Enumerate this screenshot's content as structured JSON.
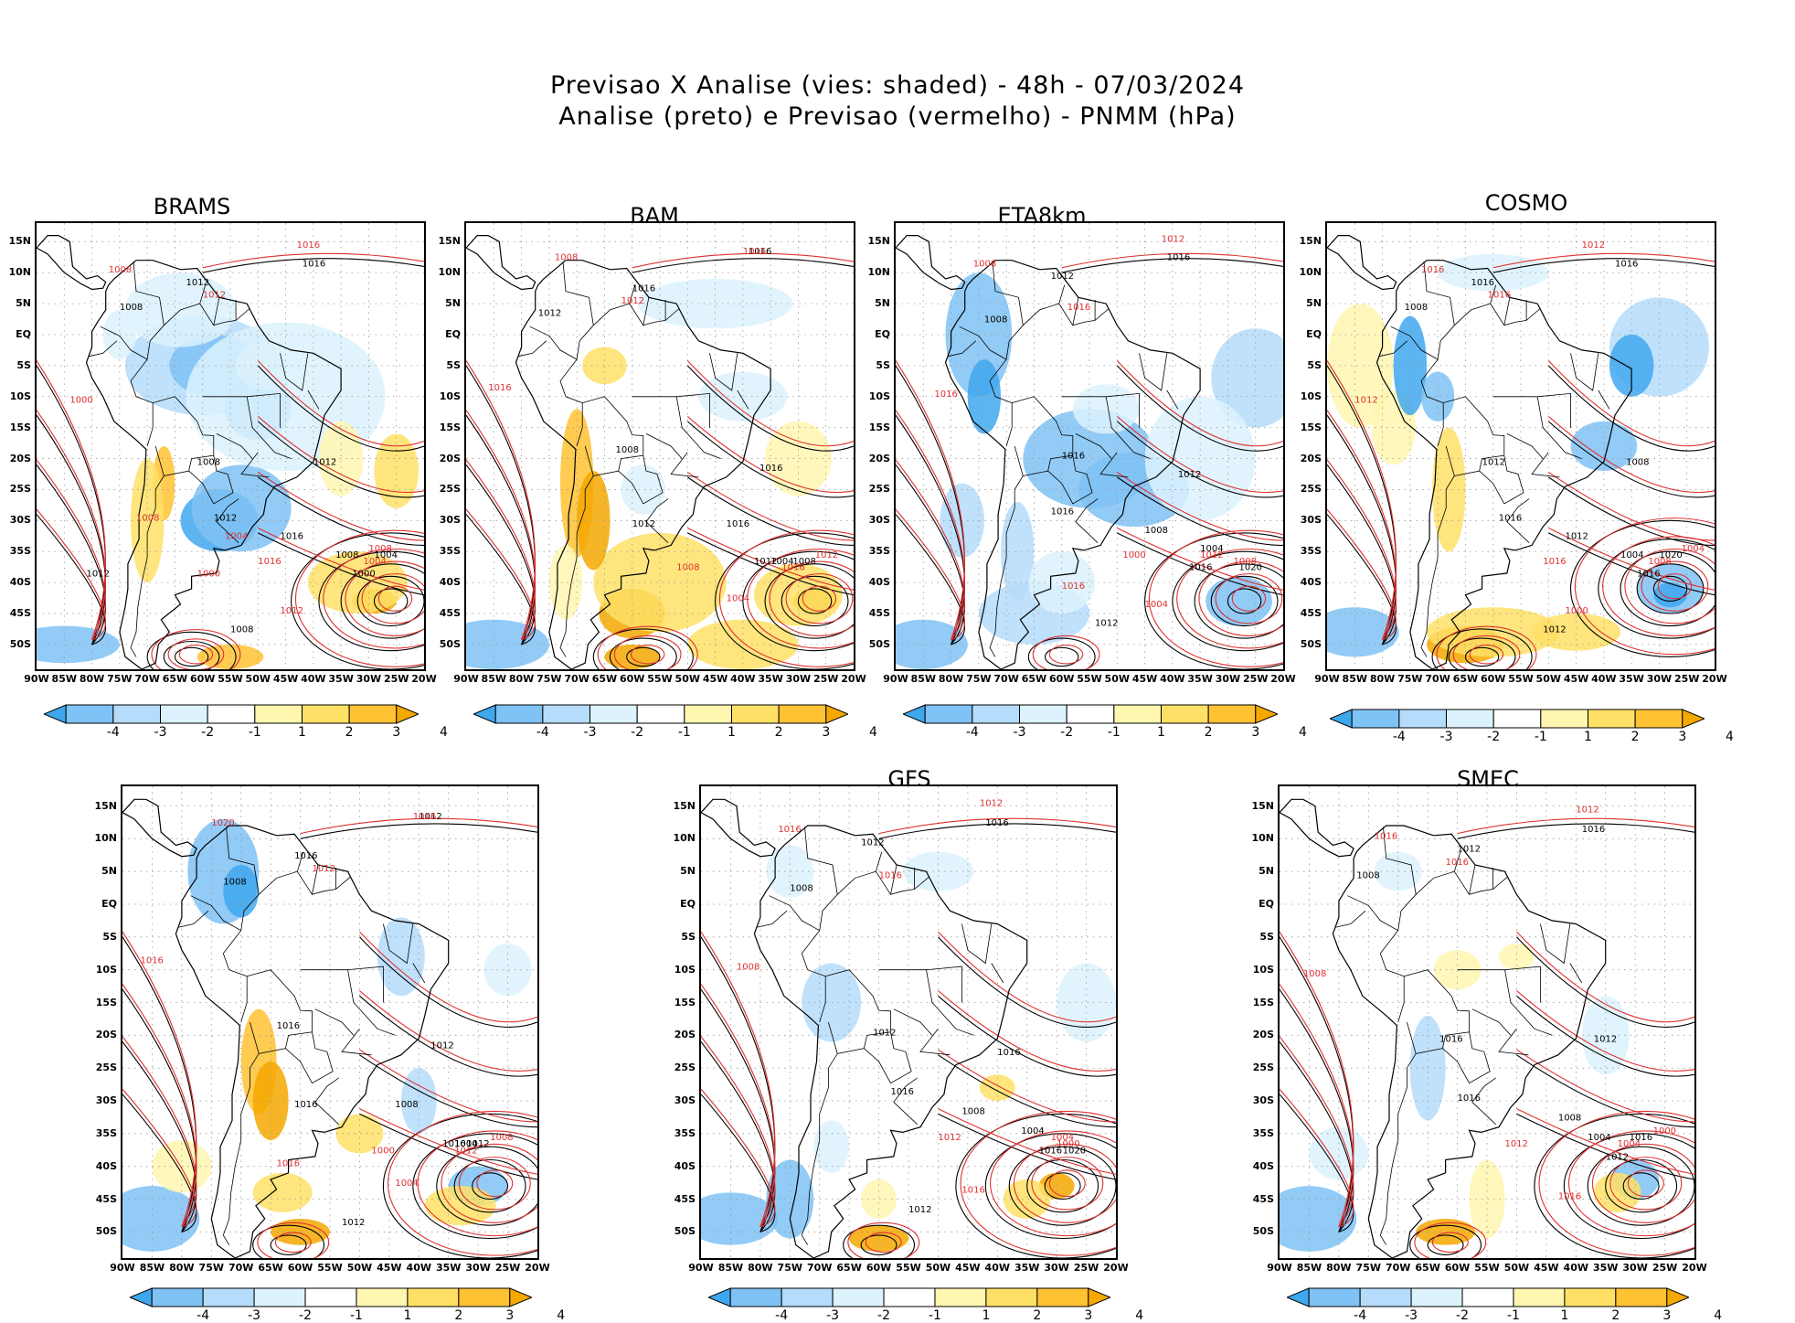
{
  "title": {
    "line1": "Previsao X Analise (vies: shaded) - 48h - 07/03/2024",
    "line2": "Analise (preto) e Previsao (vermelho) - PNMM (hPa)"
  },
  "axes": {
    "lat_labels": [
      "15N",
      "10N",
      "5N",
      "EQ",
      "5S",
      "10S",
      "15S",
      "20S",
      "25S",
      "30S",
      "35S",
      "40S",
      "45S",
      "50S"
    ],
    "lon_labels": [
      "90W",
      "85W",
      "80W",
      "75W",
      "70W",
      "65W",
      "60W",
      "55W",
      "50W",
      "45W",
      "40W",
      "35W",
      "30W",
      "25W",
      "20W"
    ]
  },
  "legend": {
    "labels": [
      "-4",
      "-3",
      "-2",
      "-1",
      "1",
      "2",
      "3",
      "4"
    ],
    "colors": [
      "#3fa7ee",
      "#7fc2f5",
      "#b5dcfa",
      "#dcf2fd",
      "#ffffff",
      "#fff6b0",
      "#ffe066",
      "#ffc233",
      "#f5a800"
    ]
  },
  "contour_colors": {
    "analysis": "#000000",
    "forecast": "#e03030"
  },
  "panels": [
    {
      "name": "BRAMS",
      "labels_black": [
        "1016",
        "1012",
        "1008",
        "1008",
        "1012",
        "1012",
        "1016",
        "1008",
        "1004",
        "1000",
        "1008",
        "1012"
      ],
      "labels_red": [
        "1008",
        "1016",
        "1012",
        "1000",
        "1004",
        "1008",
        "1012",
        "1016",
        "1000",
        "1004",
        "1008"
      ]
    },
    {
      "name": "BAM",
      "labels_black": [
        "1016",
        "1016",
        "1012",
        "1008",
        "1012",
        "1016",
        "1016",
        "1012",
        "1008",
        "1004"
      ],
      "labels_red": [
        "1008",
        "1016",
        "1012",
        "1016",
        "1016",
        "1012",
        "1004",
        "1008"
      ]
    },
    {
      "name": "ETA8km",
      "labels_black": [
        "1016",
        "1012",
        "1008",
        "1016",
        "1016",
        "1012",
        "1008",
        "1004",
        "1020",
        "1016",
        "1012"
      ],
      "labels_red": [
        "1008",
        "1012",
        "1016",
        "1016",
        "1012",
        "1008",
        "1004",
        "1000",
        "1016"
      ]
    },
    {
      "name": "COSMO",
      "labels_black": [
        "1016",
        "1016",
        "1008",
        "1012",
        "1016",
        "1008",
        "1012",
        "1004",
        "1020",
        "1016",
        "1012"
      ],
      "labels_red": [
        "1016",
        "1012",
        "1016",
        "1012",
        "1008",
        "1004",
        "1000",
        "1016"
      ]
    },
    {
      "name": "",
      "labels_black": [
        "1012",
        "1016",
        "1008",
        "1016",
        "1016",
        "1012",
        "1008",
        "1004",
        "1012",
        "1016",
        "1012"
      ],
      "labels_red": [
        "1020",
        "1016",
        "1012",
        "1016",
        "1012",
        "1008",
        "1004",
        "1000",
        "1016"
      ]
    },
    {
      "name": "GFS",
      "labels_black": [
        "1016",
        "1012",
        "1008",
        "1012",
        "1016",
        "1016",
        "1008",
        "1004",
        "1020",
        "1016",
        "1012"
      ],
      "labels_red": [
        "1016",
        "1012",
        "1016",
        "1008",
        "1004",
        "1000",
        "1016",
        "1012"
      ]
    },
    {
      "name": "SMEC",
      "labels_black": [
        "1016",
        "1012",
        "1008",
        "1016",
        "1016",
        "1012",
        "1008",
        "1004",
        "1016",
        "1012"
      ],
      "labels_red": [
        "1016",
        "1012",
        "1016",
        "1008",
        "1004",
        "1000",
        "1016",
        "1012"
      ]
    }
  ]
}
